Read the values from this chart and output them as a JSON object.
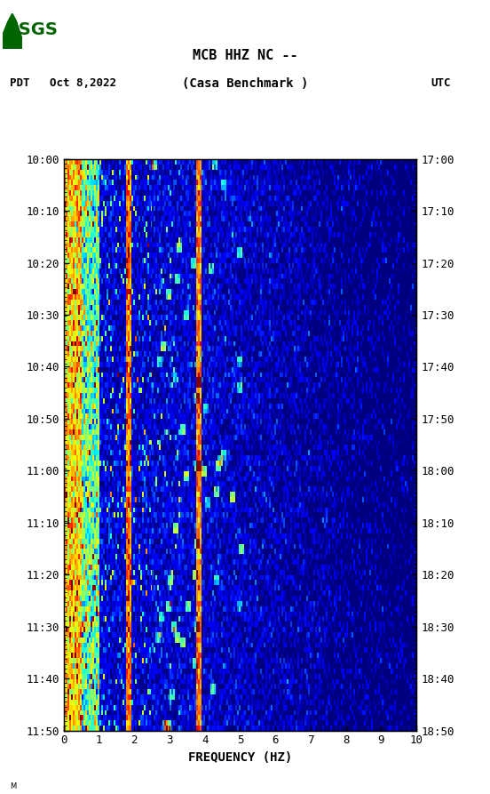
{
  "title_line1": "MCB HHZ NC --",
  "title_line2": "(Casa Benchmark )",
  "date_label": "PDT   Oct 8,2022",
  "utc_label": "UTC",
  "xlabel": "FREQUENCY (HZ)",
  "freq_min": 0,
  "freq_max": 10,
  "time_start_pdt": "10:00",
  "time_end_pdt": "11:50",
  "time_start_utc": "17:00",
  "time_end_utc": "18:50",
  "ytick_pdt": [
    "10:00",
    "10:10",
    "10:20",
    "10:30",
    "10:40",
    "10:50",
    "11:00",
    "11:10",
    "11:20",
    "11:30",
    "11:40",
    "11:50"
  ],
  "ytick_utc": [
    "17:00",
    "17:10",
    "17:20",
    "17:30",
    "17:40",
    "17:50",
    "18:00",
    "18:10",
    "18:20",
    "18:30",
    "18:40",
    "18:50"
  ],
  "xticks": [
    0,
    1,
    2,
    3,
    4,
    5,
    6,
    7,
    8,
    9,
    10
  ],
  "fig_width": 5.52,
  "fig_height": 8.93,
  "dpi": 100,
  "bg_color": "#ffffff",
  "logo_color": "#006400",
  "spectrogram_seed": 42,
  "n_time": 110,
  "n_freq": 200,
  "vertical_line_freq1": 1.8,
  "vertical_line_freq2": 3.8,
  "strong_band_freq_min": 0,
  "strong_band_freq_max": 0.15,
  "noise_floor": -2.0,
  "signal_scale": 3.5
}
